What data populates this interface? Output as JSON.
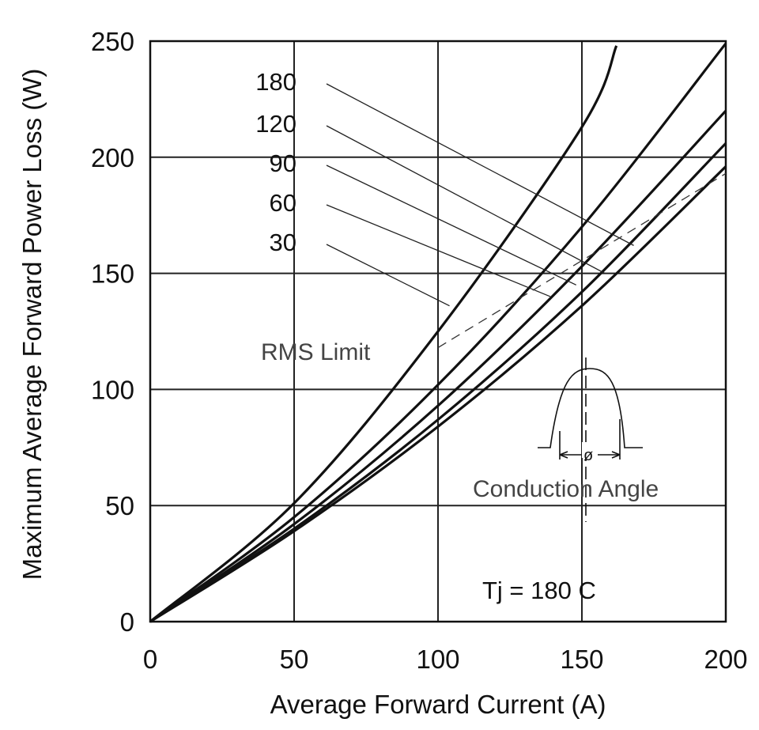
{
  "chart_data": {
    "type": "line",
    "xlabel": "Average Forward Current (A)",
    "ylabel": "Maximum Average Forward Power Loss (W)",
    "xlim": [
      0,
      200
    ],
    "ylim": [
      0,
      250
    ],
    "x_ticks": [
      "0",
      "50",
      "100",
      "150",
      "200"
    ],
    "y_ticks": [
      "0",
      "50",
      "100",
      "150",
      "200",
      "250"
    ],
    "grid": true,
    "series": [
      {
        "name": "180",
        "x": [
          0,
          50,
          100,
          150,
          200
        ],
        "y": [
          0,
          39,
          84,
          136,
          196
        ]
      },
      {
        "name": "120",
        "x": [
          0,
          50,
          100,
          150,
          200
        ],
        "y": [
          0,
          40,
          87,
          142,
          206
        ]
      },
      {
        "name": "90",
        "x": [
          0,
          50,
          100,
          150,
          200
        ],
        "y": [
          0,
          42,
          93,
          153,
          220
        ]
      },
      {
        "name": "60",
        "x": [
          0,
          50,
          100,
          150,
          200
        ],
        "y": [
          0,
          45,
          102,
          170,
          249
        ]
      },
      {
        "name": "30",
        "x": [
          0,
          50,
          100,
          150,
          162
        ],
        "y": [
          0,
          51,
          125,
          213,
          248
        ]
      }
    ],
    "rms_limit": {
      "label": "RMS Limit",
      "x": [
        100,
        200
      ],
      "y": [
        118,
        193
      ]
    },
    "annotations": {
      "conduction_angle": "Conduction Angle",
      "phi_symbol": "ø",
      "tj": "Tj = 180 C"
    }
  }
}
